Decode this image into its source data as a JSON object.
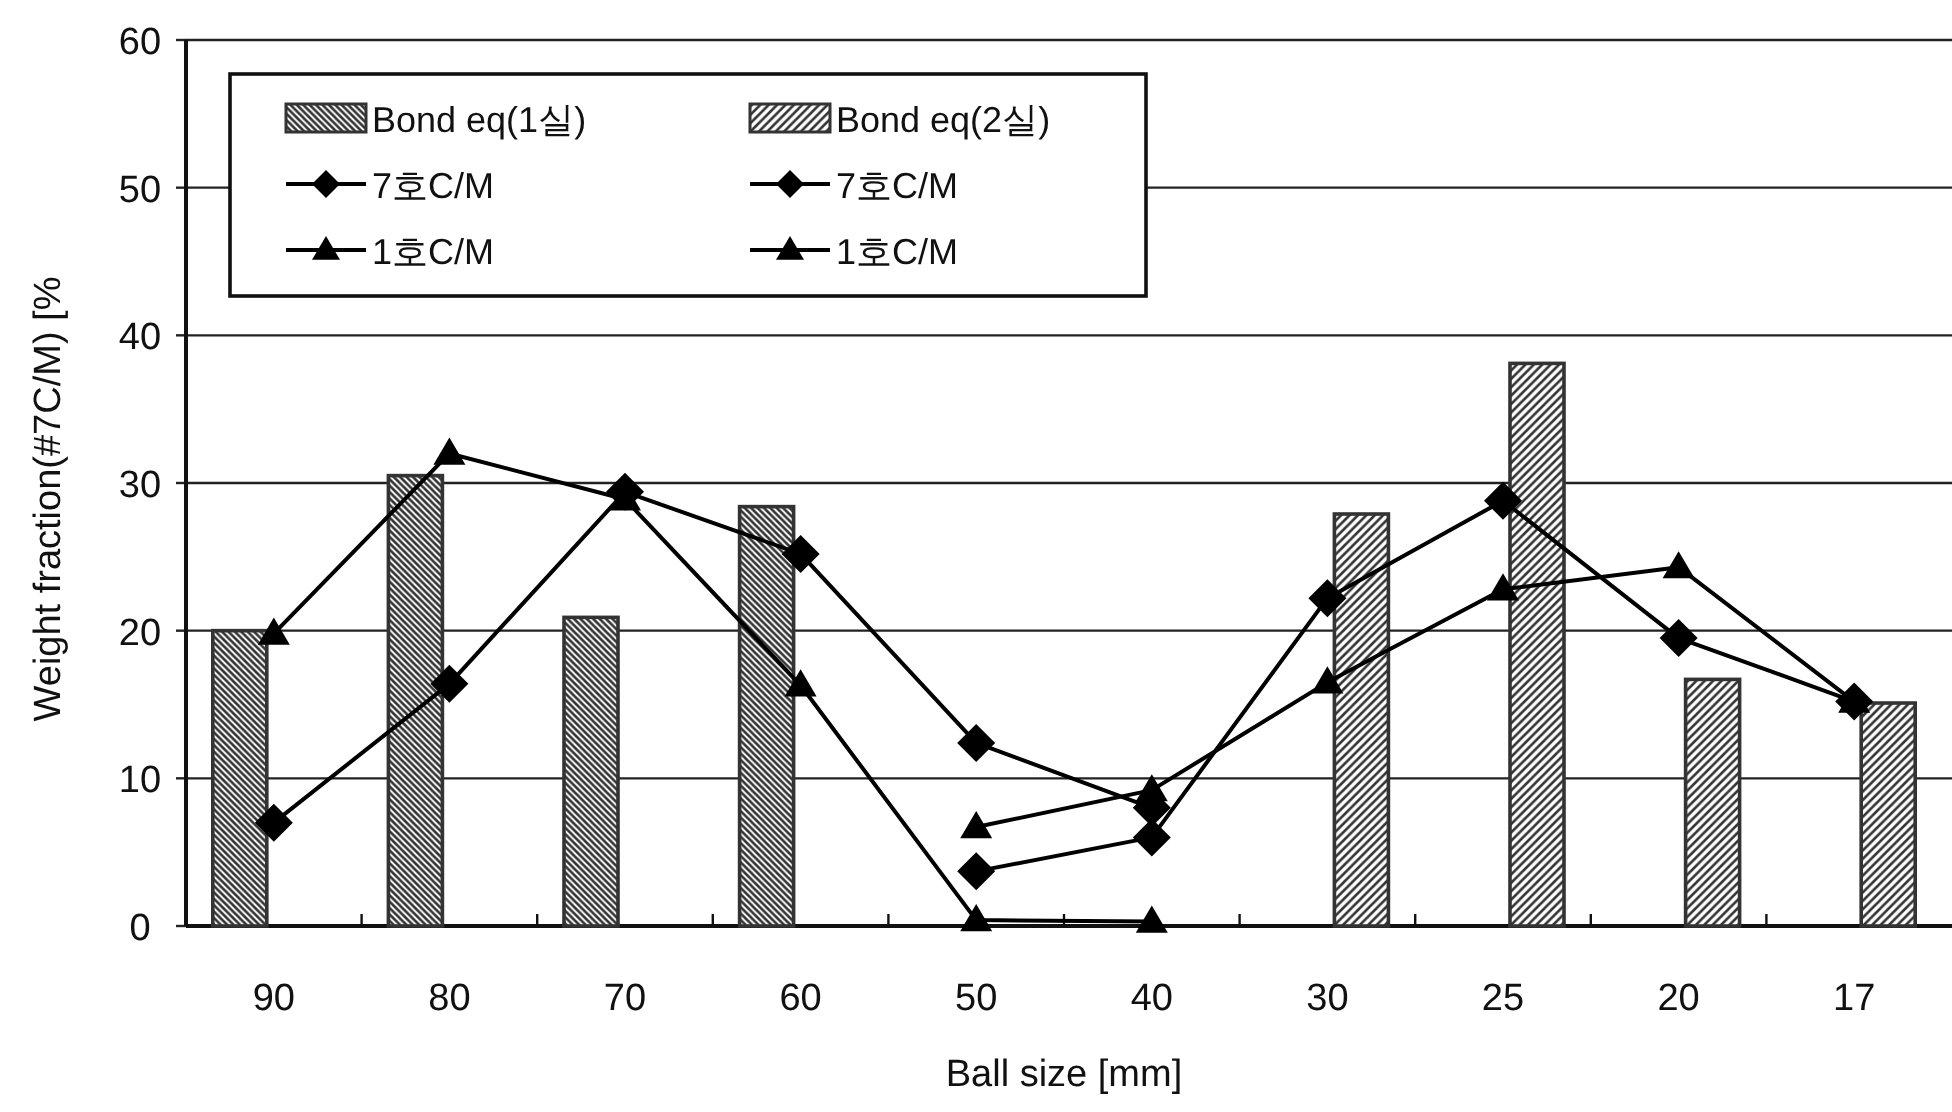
{
  "chart_data": {
    "type": "bar",
    "xlabel": "Ball size [mm]",
    "ylabel": "Weight fraction(#7C/M) [%",
    "categories": [
      "90",
      "80",
      "70",
      "60",
      "50",
      "40",
      "30",
      "25",
      "20",
      "17"
    ],
    "ylim": [
      0,
      60
    ],
    "yticks": [
      0,
      10,
      20,
      30,
      40,
      50,
      60
    ],
    "grid": "y",
    "legend": "top left",
    "series": [
      {
        "name": "Bond eq(1실)",
        "color": "#333333",
        "values": [
          20,
          30.5,
          20.9,
          28.4,
          null,
          null,
          null,
          null,
          null,
          null
        ]
      },
      {
        "name": "Bond eq(2실)",
        "color": "#333333",
        "values": [
          null,
          null,
          null,
          null,
          null,
          null,
          27.9,
          38.1,
          16.7,
          15.1
        ]
      },
      {
        "name": "7호C/M",
        "type": "line",
        "color": "#000000",
        "marker": "diamond",
        "values": [
          7.0,
          16.4,
          29.4,
          25.2,
          12.4,
          8.0,
          null,
          null,
          null,
          null
        ]
      },
      {
        "name": "7호C/M",
        "type": "line",
        "color": "#000000",
        "marker": "diamond",
        "values": [
          null,
          null,
          null,
          null,
          3.7,
          6.0,
          22.2,
          28.8,
          19.5,
          15.2
        ]
      },
      {
        "name": "1호C/M",
        "type": "line",
        "color": "#000000",
        "marker": "triangle",
        "values": [
          19.8,
          32.0,
          28.9,
          16.3,
          0.4,
          0.3,
          null,
          null,
          null,
          null
        ]
      },
      {
        "name": "1호C/M",
        "type": "line",
        "color": "#000000",
        "marker": "triangle",
        "values": [
          null,
          null,
          null,
          null,
          6.7,
          9.2,
          16.5,
          22.8,
          24.3,
          15.2
        ]
      }
    ]
  }
}
